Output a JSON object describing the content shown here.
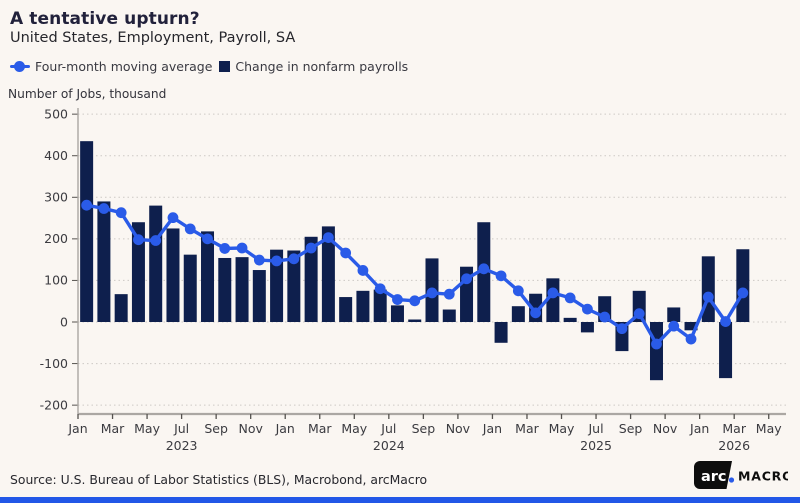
{
  "header": {
    "title": "A tentative upturn?",
    "subtitle": "United States, Employment, Payroll, SA"
  },
  "legend": {
    "ma_label": "Four-month moving average",
    "bar_label": "Change in nonfarm payrolls"
  },
  "axis_unit_label": "Number of Jobs, thousand",
  "footer": {
    "source": "Source: U.S. Bureau of Labor Statistics (BLS), Macrobond, arcMacro"
  },
  "logo": {
    "arc": "arc",
    "macro": "MACRO"
  },
  "colors": {
    "background": "#FAF6F2",
    "bar": "#0E1F4D",
    "line": "#2A5BE8",
    "grid": "#CDC9C5",
    "axis_line": "#ABA7A3",
    "tick": "#55524F",
    "axis_text": "#3B3B40",
    "accent_strip": "#2257E7",
    "logo_black": "#0D0D0D",
    "logo_dot": "#2A5BE8"
  },
  "chart_data": {
    "type": "bar",
    "title": "A tentative upturn?",
    "subtitle": "United States, Employment, Payroll, SA",
    "ylabel": "Number of Jobs, thousand",
    "ylim": [
      -200,
      500
    ],
    "ytick_step": 100,
    "grid": true,
    "legend_position": "top-left",
    "months": [
      "Jan 2023",
      "Feb 2023",
      "Mar 2023",
      "Apr 2023",
      "May 2023",
      "Jun 2023",
      "Jul 2023",
      "Aug 2023",
      "Sep 2023",
      "Oct 2023",
      "Nov 2023",
      "Dec 2023",
      "Jan 2024",
      "Feb 2024",
      "Mar 2024",
      "Apr 2024",
      "May 2024",
      "Jun 2024",
      "Jul 2024",
      "Aug 2024",
      "Sep 2024",
      "Oct 2024",
      "Nov 2024",
      "Dec 2024",
      "Jan 2025",
      "Feb 2025",
      "Mar 2025",
      "Apr 2025",
      "May 2025",
      "Jun 2025",
      "Jul 2025",
      "Aug 2025",
      "Sep 2025",
      "Oct 2025",
      "Nov 2025",
      "Dec 2025",
      "Jan 2026",
      "Feb 2026",
      "Mar 2026"
    ],
    "series": [
      {
        "name": "Change in nonfarm payrolls",
        "type": "bar",
        "color": "#0E1F4D",
        "values": [
          435,
          290,
          67,
          240,
          280,
          225,
          162,
          218,
          154,
          156,
          125,
          174,
          172,
          205,
          230,
          60,
          75,
          78,
          40,
          6,
          153,
          30,
          133,
          240,
          -50,
          38,
          68,
          105,
          10,
          -25,
          62,
          -70,
          75,
          -140,
          35,
          -20,
          158,
          -135,
          175
        ]
      },
      {
        "name": "Four-month moving average",
        "type": "line",
        "color": "#2A5BE8",
        "values": [
          281,
          273,
          263,
          198,
          196,
          251,
          224,
          200,
          177,
          178,
          149,
          147,
          152,
          178,
          203,
          166,
          124,
          80,
          54,
          51,
          70,
          67,
          104,
          128,
          111,
          75,
          22,
          70,
          58,
          31,
          12,
          -16,
          20,
          -53,
          -10,
          -41,
          60,
          1,
          70
        ]
      }
    ],
    "axis_month_count": 41,
    "xticks": [
      {
        "i": 0,
        "label": "Jan"
      },
      {
        "i": 2,
        "label": "Mar"
      },
      {
        "i": 4,
        "label": "May"
      },
      {
        "i": 6,
        "label": "Jul"
      },
      {
        "i": 8,
        "label": "Sep"
      },
      {
        "i": 10,
        "label": "Nov"
      },
      {
        "i": 12,
        "label": "Jan"
      },
      {
        "i": 14,
        "label": "Mar"
      },
      {
        "i": 16,
        "label": "May"
      },
      {
        "i": 18,
        "label": "Jul"
      },
      {
        "i": 20,
        "label": "Sep"
      },
      {
        "i": 22,
        "label": "Nov"
      },
      {
        "i": 24,
        "label": "Jan"
      },
      {
        "i": 26,
        "label": "Mar"
      },
      {
        "i": 28,
        "label": "May"
      },
      {
        "i": 30,
        "label": "Jul"
      },
      {
        "i": 32,
        "label": "Sep"
      },
      {
        "i": 34,
        "label": "Nov"
      },
      {
        "i": 36,
        "label": "Jan"
      },
      {
        "i": 38,
        "label": "Mar"
      },
      {
        "i": 40,
        "label": "May"
      }
    ],
    "year_labels": [
      {
        "i": 6,
        "label": "2023"
      },
      {
        "i": 18,
        "label": "2024"
      },
      {
        "i": 30,
        "label": "2025"
      },
      {
        "i": 38,
        "label": "2026"
      }
    ]
  }
}
